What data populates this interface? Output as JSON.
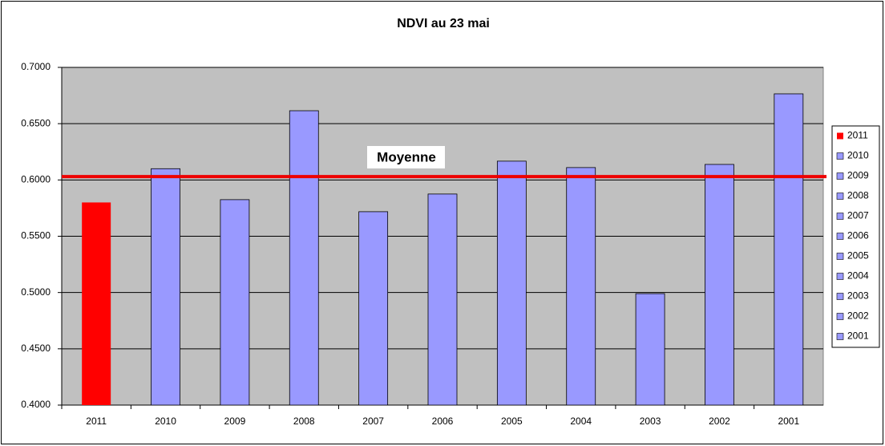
{
  "chart_data": {
    "type": "bar",
    "title": "NDVI au 23 mai",
    "categories": [
      "2011",
      "2010",
      "2009",
      "2008",
      "2007",
      "2006",
      "2005",
      "2004",
      "2003",
      "2002",
      "2001"
    ],
    "values": [
      0.58,
      0.61,
      0.5825,
      0.6615,
      0.5718,
      0.5875,
      0.6167,
      0.611,
      0.499,
      0.6138,
      0.6765
    ],
    "colors": [
      "#ff0000",
      "#9999ff",
      "#9999ff",
      "#9999ff",
      "#9999ff",
      "#9999ff",
      "#9999ff",
      "#9999ff",
      "#9999ff",
      "#9999ff",
      "#9999ff"
    ],
    "ylim": [
      0.4,
      0.7
    ],
    "yticks": [
      {
        "value": 0.4,
        "label": "0.4000"
      },
      {
        "value": 0.45,
        "label": "0.4500"
      },
      {
        "value": 0.5,
        "label": "0.5000"
      },
      {
        "value": 0.55,
        "label": "0.5500"
      },
      {
        "value": 0.6,
        "label": "0.6000"
      },
      {
        "value": 0.65,
        "label": "0.6500"
      },
      {
        "value": 0.7,
        "label": "0.7000"
      }
    ],
    "grid": true,
    "reference_line": {
      "label": "Moyenne",
      "value": 0.603,
      "color": "#ee0000"
    },
    "legend": "right"
  }
}
